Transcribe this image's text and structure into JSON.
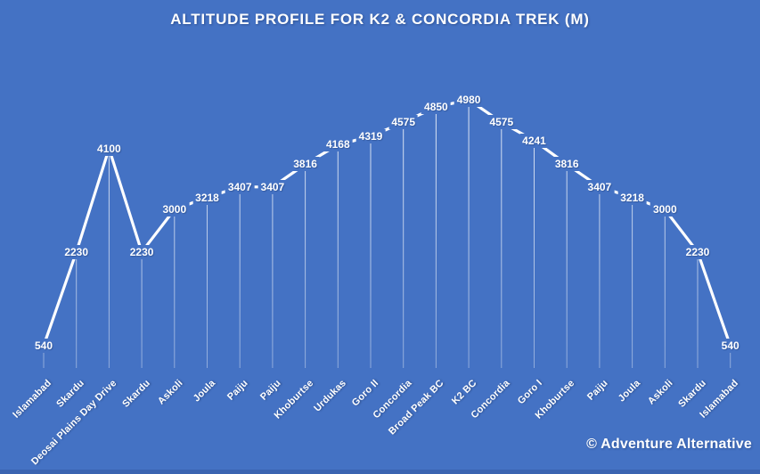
{
  "chart_data": {
    "type": "line",
    "title": "ALTITUDE PROFILE FOR K2 & CONCORDIA TREK (M)",
    "categories": [
      "Islamabad",
      "Skardu",
      "Deosai Plains Day Drive",
      "Skardu",
      "Askoli",
      "Joula",
      "Paiju",
      "Paiju",
      "Khoburtse",
      "Urdukas",
      "Goro II",
      "Concordia",
      "Broad Peak BC",
      "K2 BC",
      "Concordia",
      "Goro I",
      "Khoburtse",
      "Paiju",
      "Joula",
      "Askoli",
      "Skardu",
      "Islamabad"
    ],
    "values": [
      540,
      2230,
      4100,
      2230,
      3000,
      3218,
      3407,
      3407,
      3816,
      4168,
      4319,
      4575,
      4850,
      4980,
      4575,
      4241,
      3816,
      3407,
      3218,
      3000,
      2230,
      540
    ],
    "unit": "m",
    "xlabel": "",
    "ylabel": "",
    "ylim": [
      250,
      5200
    ],
    "grid": false,
    "legend": "none",
    "data_labels": "centered-on-points",
    "drop_lines": true,
    "x_label_rotation_deg": 45
  },
  "watermark": "© Adventure Alternative",
  "colors": {
    "background": "#4472C4",
    "bottom_strip": "#3B64B1",
    "line": "#FFFFFF",
    "label_text": "#FFFFFF"
  }
}
